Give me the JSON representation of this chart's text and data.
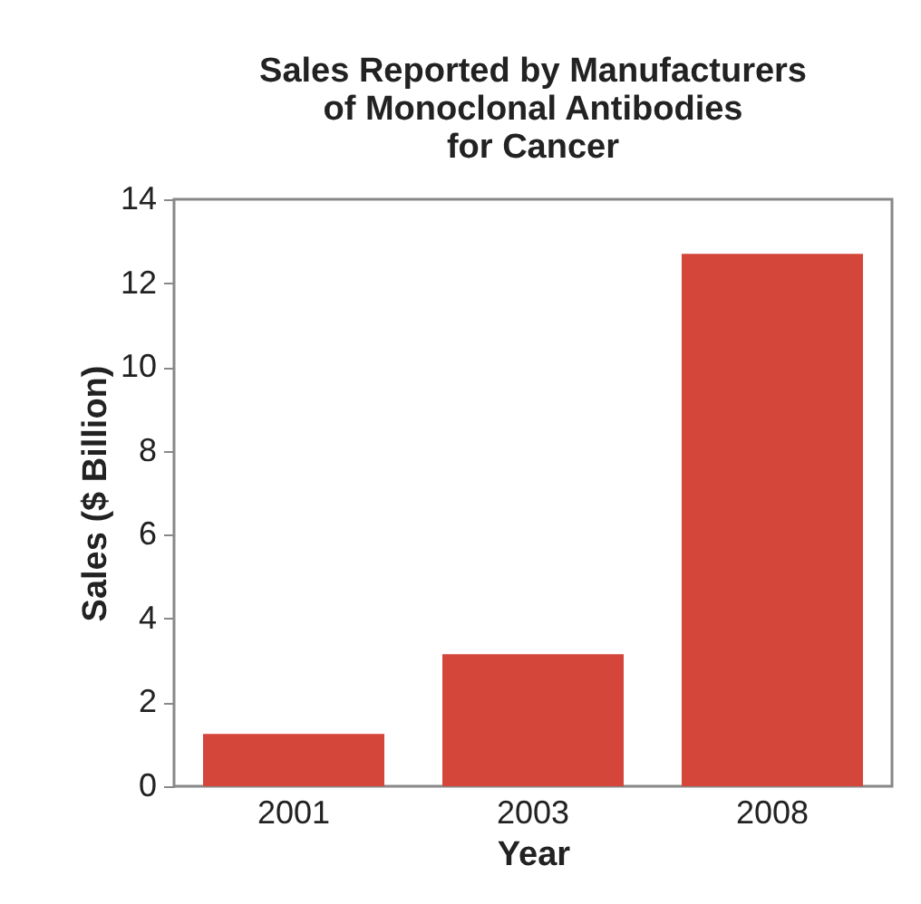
{
  "chart_data": {
    "type": "bar",
    "title": "Sales Reported by Manufacturers\nof Monoclonal Antibodies\nfor Cancer",
    "xlabel": "Year",
    "ylabel": "Sales ($ Billion)",
    "categories": [
      "2001",
      "2003",
      "2008"
    ],
    "values": [
      1.25,
      3.15,
      12.7
    ],
    "color": "#d4453a",
    "ylim": [
      0,
      14
    ],
    "yticks": [
      0,
      2,
      4,
      6,
      8,
      10,
      12,
      14
    ],
    "grid": false
  }
}
